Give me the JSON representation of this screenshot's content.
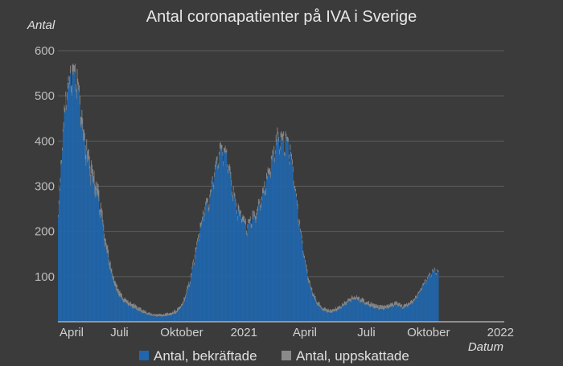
{
  "chart_data": {
    "type": "bar",
    "title": "Antal coronapatienter på IVA i Sverige",
    "ylabel": "Antal",
    "xlabel": "Datum",
    "ylim": [
      0,
      600
    ],
    "yticks": [
      100,
      200,
      300,
      400,
      500,
      600
    ],
    "x_range_days": [
      0,
      660
    ],
    "xticks": [
      {
        "day": 0,
        "label": "April"
      },
      {
        "day": 91,
        "label": "Juli"
      },
      {
        "day": 183,
        "label": "Oktober"
      },
      {
        "day": 275,
        "label": "2021"
      },
      {
        "day": 365,
        "label": "April"
      },
      {
        "day": 456,
        "label": "Juli"
      },
      {
        "day": 548,
        "label": "Oktober"
      },
      {
        "day": 640,
        "label": "2022"
      }
    ],
    "series": [
      {
        "name": "Antal, bekräftade",
        "color": "#2166ac",
        "keypoints_day_value": [
          [
            0,
            230
          ],
          [
            6,
            400
          ],
          [
            12,
            510
          ],
          [
            18,
            535
          ],
          [
            24,
            550
          ],
          [
            30,
            520
          ],
          [
            36,
            420
          ],
          [
            42,
            370
          ],
          [
            48,
            330
          ],
          [
            55,
            300
          ],
          [
            62,
            250
          ],
          [
            70,
            170
          ],
          [
            78,
            110
          ],
          [
            86,
            70
          ],
          [
            95,
            48
          ],
          [
            105,
            36
          ],
          [
            115,
            28
          ],
          [
            125,
            20
          ],
          [
            135,
            15
          ],
          [
            145,
            12
          ],
          [
            155,
            12
          ],
          [
            165,
            14
          ],
          [
            175,
            20
          ],
          [
            185,
            40
          ],
          [
            195,
            90
          ],
          [
            205,
            170
          ],
          [
            215,
            240
          ],
          [
            222,
            265
          ],
          [
            230,
            320
          ],
          [
            238,
            370
          ],
          [
            243,
            385
          ],
          [
            250,
            365
          ],
          [
            258,
            290
          ],
          [
            265,
            245
          ],
          [
            272,
            232
          ],
          [
            278,
            205
          ],
          [
            285,
            225
          ],
          [
            292,
            235
          ],
          [
            300,
            265
          ],
          [
            310,
            320
          ],
          [
            318,
            375
          ],
          [
            324,
            405
          ],
          [
            330,
            398
          ],
          [
            336,
            405
          ],
          [
            342,
            380
          ],
          [
            350,
            300
          ],
          [
            358,
            205
          ],
          [
            366,
            120
          ],
          [
            374,
            70
          ],
          [
            382,
            40
          ],
          [
            392,
            25
          ],
          [
            402,
            20
          ],
          [
            412,
            25
          ],
          [
            422,
            35
          ],
          [
            432,
            48
          ],
          [
            440,
            52
          ],
          [
            450,
            42
          ],
          [
            460,
            35
          ],
          [
            470,
            30
          ],
          [
            480,
            28
          ],
          [
            490,
            32
          ],
          [
            500,
            38
          ],
          [
            510,
            30
          ],
          [
            520,
            38
          ],
          [
            528,
            50
          ],
          [
            536,
            70
          ],
          [
            544,
            92
          ],
          [
            552,
            108
          ],
          [
            558,
            115
          ],
          [
            562,
            108
          ]
        ]
      },
      {
        "name": "Antal, uppskattade",
        "color": "#8a8a8a",
        "keypoints_day_value": [
          [
            0,
            5
          ],
          [
            30,
            25
          ],
          [
            60,
            20
          ],
          [
            90,
            10
          ],
          [
            140,
            4
          ],
          [
            200,
            8
          ],
          [
            240,
            12
          ],
          [
            280,
            10
          ],
          [
            330,
            12
          ],
          [
            360,
            8
          ],
          [
            420,
            6
          ],
          [
            470,
            8
          ],
          [
            520,
            6
          ],
          [
            562,
            3
          ]
        ]
      }
    ]
  }
}
